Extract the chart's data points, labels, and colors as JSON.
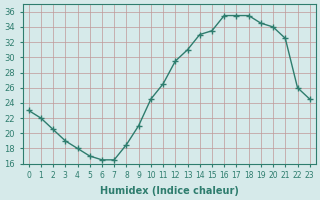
{
  "x": [
    0,
    1,
    2,
    3,
    4,
    5,
    6,
    7,
    8,
    9,
    10,
    11,
    12,
    13,
    14,
    15,
    16,
    17,
    18,
    19,
    20,
    21,
    22,
    23
  ],
  "y": [
    23,
    22,
    20.5,
    19,
    18,
    17,
    16.5,
    16.5,
    18.5,
    21,
    24.5,
    26.5,
    29.5,
    31,
    33,
    33.5,
    35.5,
    35.5,
    35.5,
    34.5,
    34,
    32.5,
    26,
    24.5
  ],
  "line_color": "#2e7d6e",
  "marker": "+",
  "marker_size": 4,
  "bg_color": "#d6eaea",
  "grid_color": "#c09898",
  "xlabel": "Humidex (Indice chaleur)",
  "xlim": [
    -0.5,
    23.5
  ],
  "ylim": [
    16,
    37
  ],
  "yticks": [
    16,
    18,
    20,
    22,
    24,
    26,
    28,
    30,
    32,
    34,
    36
  ],
  "xticks": [
    0,
    1,
    2,
    3,
    4,
    5,
    6,
    7,
    8,
    9,
    10,
    11,
    12,
    13,
    14,
    15,
    16,
    17,
    18,
    19,
    20,
    21,
    22,
    23
  ],
  "title": ""
}
